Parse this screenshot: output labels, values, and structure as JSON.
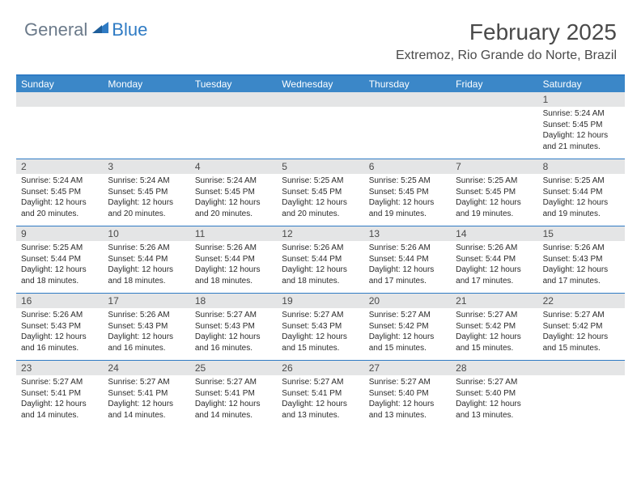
{
  "brand": {
    "part1": "General",
    "part2": "Blue"
  },
  "title": "February 2025",
  "location": "Extremoz, Rio Grande do Norte, Brazil",
  "colors": {
    "header_bar": "#3b87c8",
    "accent": "#2f7bc4",
    "day_bar": "#e4e5e6",
    "text_dark": "#4a4a4a",
    "text_body": "#2b2b2b",
    "logo_gray": "#6b7a8a",
    "background": "#ffffff"
  },
  "weekdays": [
    "Sunday",
    "Monday",
    "Tuesday",
    "Wednesday",
    "Thursday",
    "Friday",
    "Saturday"
  ],
  "weeks": [
    [
      null,
      null,
      null,
      null,
      null,
      null,
      {
        "n": "1",
        "sr": "5:24 AM",
        "ss": "5:45 PM",
        "dl": "12 hours and 21 minutes."
      }
    ],
    [
      {
        "n": "2",
        "sr": "5:24 AM",
        "ss": "5:45 PM",
        "dl": "12 hours and 20 minutes."
      },
      {
        "n": "3",
        "sr": "5:24 AM",
        "ss": "5:45 PM",
        "dl": "12 hours and 20 minutes."
      },
      {
        "n": "4",
        "sr": "5:24 AM",
        "ss": "5:45 PM",
        "dl": "12 hours and 20 minutes."
      },
      {
        "n": "5",
        "sr": "5:25 AM",
        "ss": "5:45 PM",
        "dl": "12 hours and 20 minutes."
      },
      {
        "n": "6",
        "sr": "5:25 AM",
        "ss": "5:45 PM",
        "dl": "12 hours and 19 minutes."
      },
      {
        "n": "7",
        "sr": "5:25 AM",
        "ss": "5:45 PM",
        "dl": "12 hours and 19 minutes."
      },
      {
        "n": "8",
        "sr": "5:25 AM",
        "ss": "5:44 PM",
        "dl": "12 hours and 19 minutes."
      }
    ],
    [
      {
        "n": "9",
        "sr": "5:25 AM",
        "ss": "5:44 PM",
        "dl": "12 hours and 18 minutes."
      },
      {
        "n": "10",
        "sr": "5:26 AM",
        "ss": "5:44 PM",
        "dl": "12 hours and 18 minutes."
      },
      {
        "n": "11",
        "sr": "5:26 AM",
        "ss": "5:44 PM",
        "dl": "12 hours and 18 minutes."
      },
      {
        "n": "12",
        "sr": "5:26 AM",
        "ss": "5:44 PM",
        "dl": "12 hours and 18 minutes."
      },
      {
        "n": "13",
        "sr": "5:26 AM",
        "ss": "5:44 PM",
        "dl": "12 hours and 17 minutes."
      },
      {
        "n": "14",
        "sr": "5:26 AM",
        "ss": "5:44 PM",
        "dl": "12 hours and 17 minutes."
      },
      {
        "n": "15",
        "sr": "5:26 AM",
        "ss": "5:43 PM",
        "dl": "12 hours and 17 minutes."
      }
    ],
    [
      {
        "n": "16",
        "sr": "5:26 AM",
        "ss": "5:43 PM",
        "dl": "12 hours and 16 minutes."
      },
      {
        "n": "17",
        "sr": "5:26 AM",
        "ss": "5:43 PM",
        "dl": "12 hours and 16 minutes."
      },
      {
        "n": "18",
        "sr": "5:27 AM",
        "ss": "5:43 PM",
        "dl": "12 hours and 16 minutes."
      },
      {
        "n": "19",
        "sr": "5:27 AM",
        "ss": "5:43 PM",
        "dl": "12 hours and 15 minutes."
      },
      {
        "n": "20",
        "sr": "5:27 AM",
        "ss": "5:42 PM",
        "dl": "12 hours and 15 minutes."
      },
      {
        "n": "21",
        "sr": "5:27 AM",
        "ss": "5:42 PM",
        "dl": "12 hours and 15 minutes."
      },
      {
        "n": "22",
        "sr": "5:27 AM",
        "ss": "5:42 PM",
        "dl": "12 hours and 15 minutes."
      }
    ],
    [
      {
        "n": "23",
        "sr": "5:27 AM",
        "ss": "5:41 PM",
        "dl": "12 hours and 14 minutes."
      },
      {
        "n": "24",
        "sr": "5:27 AM",
        "ss": "5:41 PM",
        "dl": "12 hours and 14 minutes."
      },
      {
        "n": "25",
        "sr": "5:27 AM",
        "ss": "5:41 PM",
        "dl": "12 hours and 14 minutes."
      },
      {
        "n": "26",
        "sr": "5:27 AM",
        "ss": "5:41 PM",
        "dl": "12 hours and 13 minutes."
      },
      {
        "n": "27",
        "sr": "5:27 AM",
        "ss": "5:40 PM",
        "dl": "12 hours and 13 minutes."
      },
      {
        "n": "28",
        "sr": "5:27 AM",
        "ss": "5:40 PM",
        "dl": "12 hours and 13 minutes."
      },
      null
    ]
  ],
  "labels": {
    "sunrise": "Sunrise:",
    "sunset": "Sunset:",
    "daylight": "Daylight:"
  }
}
